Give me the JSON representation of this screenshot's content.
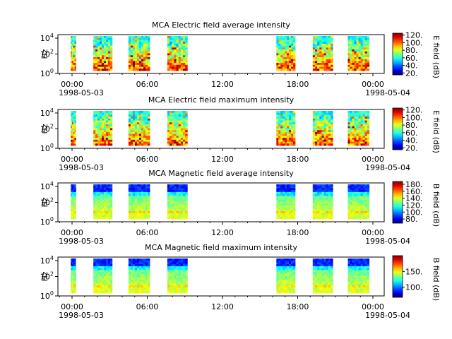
{
  "chart_data": [
    {
      "type": "heatmap",
      "title": "MCA  Electric field average intensity",
      "ylabel": "Hz",
      "y_ticks": [
        "10^0",
        "10^2",
        "10^4"
      ],
      "x_ticks": [
        "00:00",
        "06:00",
        "12:00",
        "18:00",
        "00:00"
      ],
      "x_dates": [
        "1998-05-03",
        "1998-05-04"
      ],
      "colorbar": {
        "label": "E field (dB)",
        "ticks": [
          "120",
          "100",
          "80",
          "60",
          "40",
          "20"
        ],
        "range": [
          15,
          125
        ],
        "scale": "jet"
      },
      "data_intervals_h": [
        [
          -0.1,
          0.3
        ],
        [
          1.7,
          3.2
        ],
        [
          4.5,
          6.2
        ],
        [
          7.6,
          9.2
        ],
        [
          16.3,
          17.8
        ],
        [
          19.2,
          20.8
        ],
        [
          22.0,
          23.7
        ]
      ],
      "style": "electric"
    },
    {
      "type": "heatmap",
      "title": "MCA  Electric field maximum intensity",
      "ylabel": "Hz",
      "y_ticks": [
        "10^0",
        "10^2",
        "10^4"
      ],
      "x_ticks": [
        "00:00",
        "06:00",
        "12:00",
        "18:00",
        "00:00"
      ],
      "x_dates": [
        "1998-05-03",
        "1998-05-04"
      ],
      "colorbar": {
        "label": "E field (dB)",
        "ticks": [
          "120",
          "100",
          "80",
          "60",
          "40",
          "20"
        ],
        "range": [
          15,
          125
        ],
        "scale": "jet"
      },
      "data_intervals_h": [
        [
          -0.1,
          0.3
        ],
        [
          1.7,
          3.2
        ],
        [
          4.5,
          6.2
        ],
        [
          7.6,
          9.2
        ],
        [
          16.3,
          17.8
        ],
        [
          19.2,
          20.8
        ],
        [
          22.0,
          23.7
        ]
      ],
      "style": "electric"
    },
    {
      "type": "heatmap",
      "title": "MCA  Magnetic field average intensity",
      "ylabel": "Hz",
      "y_ticks": [
        "10^0",
        "10^2",
        "10^4"
      ],
      "x_ticks": [
        "00:00",
        "06:00",
        "12:00",
        "18:00",
        "00:00"
      ],
      "x_dates": [
        "1998-05-03",
        "1998-05-04"
      ],
      "colorbar": {
        "label": "B field (dB)",
        "ticks": [
          "180",
          "160",
          "140",
          "120",
          "100",
          "80"
        ],
        "range": [
          68,
          188
        ],
        "scale": "jet"
      },
      "data_intervals_h": [
        [
          -0.1,
          0.3
        ],
        [
          1.7,
          3.2
        ],
        [
          4.5,
          6.2
        ],
        [
          7.6,
          9.2
        ],
        [
          16.3,
          17.8
        ],
        [
          19.2,
          20.8
        ],
        [
          22.0,
          23.7
        ]
      ],
      "style": "magnetic"
    },
    {
      "type": "heatmap",
      "title": "MCA  Magnetic field maximum intensity",
      "ylabel": "Hz",
      "y_ticks": [
        "10^0",
        "10^2",
        "10^4"
      ],
      "x_ticks": [
        "00:00",
        "06:00",
        "12:00",
        "18:00",
        "00:00"
      ],
      "x_dates": [
        "1998-05-03",
        "1998-05-04"
      ],
      "colorbar": {
        "label": "B field (dB)",
        "ticks": [
          "150",
          "100"
        ],
        "range": [
          68,
          200
        ],
        "scale": "jet"
      },
      "data_intervals_h": [
        [
          -0.1,
          0.3
        ],
        [
          1.7,
          3.2
        ],
        [
          4.5,
          6.2
        ],
        [
          7.6,
          9.2
        ],
        [
          16.3,
          17.8
        ],
        [
          19.2,
          20.8
        ],
        [
          22.0,
          23.7
        ]
      ],
      "style": "magnetic"
    }
  ]
}
